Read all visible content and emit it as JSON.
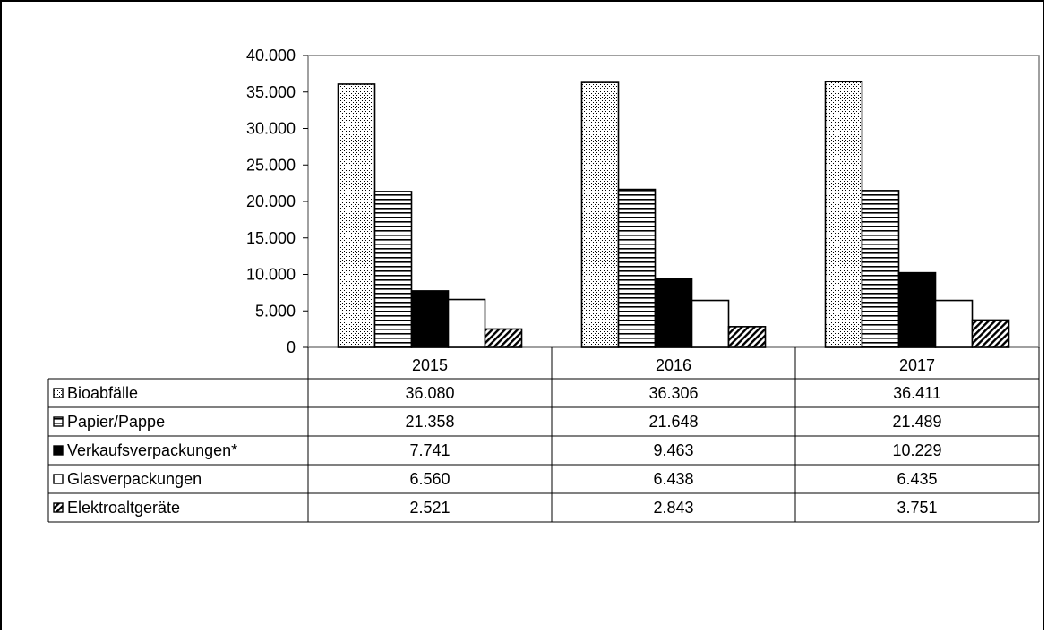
{
  "chart_data": {
    "type": "bar",
    "categories": [
      "2015",
      "2016",
      "2017"
    ],
    "series": [
      {
        "name": "Bioabfälle",
        "values": [
          36080,
          36306,
          36411
        ],
        "labels": [
          "36.080",
          "36.306",
          "36.411"
        ],
        "pattern": "dots"
      },
      {
        "name": "Papier/Pappe",
        "values": [
          21358,
          21648,
          21489
        ],
        "labels": [
          "21.358",
          "21.648",
          "21.489"
        ],
        "pattern": "hlines"
      },
      {
        "name": "Verkaufsverpackungen*",
        "values": [
          7741,
          9463,
          10229
        ],
        "labels": [
          "7.741",
          "9.463",
          "10.229"
        ],
        "pattern": "solid"
      },
      {
        "name": "Glasverpackungen",
        "values": [
          6560,
          6438,
          6435
        ],
        "labels": [
          "6.560",
          "6.438",
          "6.435"
        ],
        "pattern": "empty"
      },
      {
        "name": "Elektroaltgeräte",
        "values": [
          2521,
          2843,
          3751
        ],
        "labels": [
          "2.521",
          "2.843",
          "3.751"
        ],
        "pattern": "diagonal"
      }
    ],
    "yticks": [
      "0",
      "5.000",
      "10.000",
      "15.000",
      "20.000",
      "25.000",
      "30.000",
      "35.000",
      "40.000"
    ],
    "ylim": [
      0,
      40000
    ],
    "grid": false,
    "legend": "data-table-below",
    "colors": {
      "solid": "#000000",
      "empty": "#ffffff",
      "plot_border": "#808080"
    }
  }
}
